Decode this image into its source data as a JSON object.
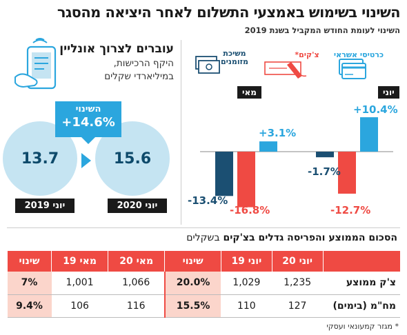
{
  "header": {
    "title": "השינוי בשימוש באמצעי התשלום לאחר היציאה מהסגר",
    "subtitle": "השינוי לעומת החודש המקביל בשנת 2019"
  },
  "legend": {
    "credit": "כרטיסי אשראי",
    "checks": "צ'קים*",
    "cash": "משיכת מזומנים"
  },
  "colors": {
    "credit": "#2ba6de",
    "checks": "#ef4a43",
    "cash": "#1b4f72",
    "circle": "#c5e4f2",
    "highlight": "#fbd5cb"
  },
  "chart_data": {
    "type": "bar",
    "categories": [
      "מאי",
      "יוני"
    ],
    "series": [
      {
        "name": "משיכת מזומנים",
        "values": [
          -13.4,
          -1.7
        ]
      },
      {
        "name": "צ'קים*",
        "values": [
          -16.8,
          -12.7
        ]
      },
      {
        "name": "כרטיסי אשראי",
        "values": [
          3.1,
          10.4
        ]
      }
    ],
    "value_labels": {
      "may": {
        "cash": "-13.4%",
        "checks": "-16.8%",
        "credit": "+3.1%"
      },
      "june": {
        "cash": "-1.7%",
        "checks": "-12.7%",
        "credit": "+10.4%"
      }
    },
    "title": "השינוי לעומת החודש המקביל בשנת 2019",
    "legend": "top"
  },
  "online": {
    "heading": "עוברים לצרוך אונליין",
    "sub1": "היקף הרכישות,",
    "sub2": "במיליארדי שקלים",
    "change_label": "השינוי",
    "change_value": "+14.6%",
    "value_2019": "13.7",
    "value_2020": "15.6",
    "label_2019": "יוני 2019",
    "label_2020": "יוני 2020"
  },
  "table": {
    "title": "הסכום הממוצע והפריסה גדלים בצ'קים",
    "unit": "בשקלים",
    "headers": [
      "",
      "יוני 20",
      "יוני 19",
      "שינוי",
      "מאי 20",
      "מאי 19",
      "שינוי"
    ],
    "rows": [
      {
        "label": "צ'ק ממוצע",
        "cells": [
          "1,235",
          "1,029",
          "20.0%",
          "1,066",
          "1,001",
          "7%"
        ]
      },
      {
        "label": "מח\"מ (בימים)",
        "cells": [
          "127",
          "110",
          "15.5%",
          "116",
          "106",
          "9.4%"
        ]
      }
    ]
  },
  "footnote": "* מגזר קמעונאי ועסקי"
}
